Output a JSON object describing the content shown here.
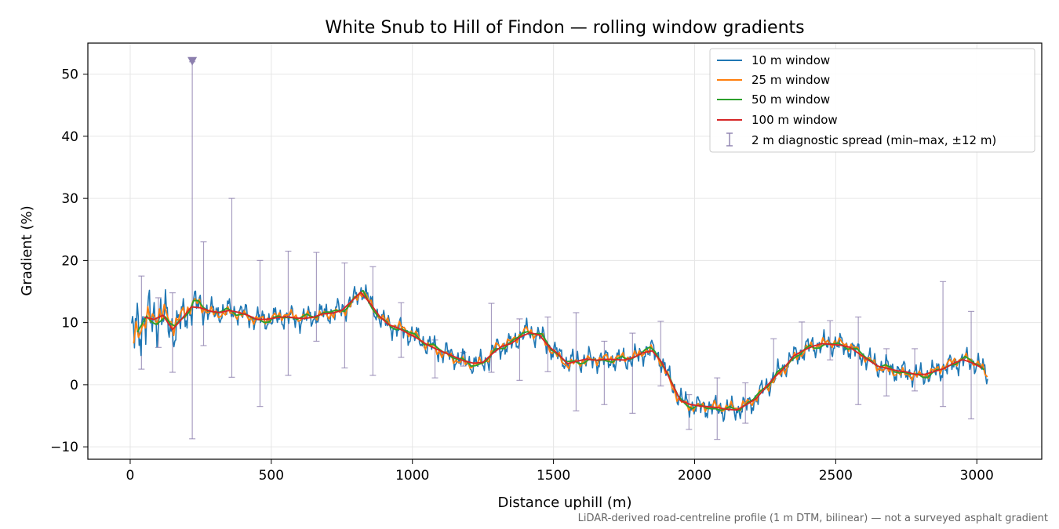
{
  "chart_data": {
    "type": "line",
    "title": "White Snub to Hill of Findon — rolling window gradients",
    "xlabel": "Distance uphill (m)",
    "ylabel": "Gradient (%)",
    "footnote": "LiDAR-derived road-centreline profile (1 m DTM, bilinear) — not a surveyed asphalt gradient",
    "xlim": [
      -150,
      3230
    ],
    "ylim": [
      -12,
      55
    ],
    "xticks": [
      0,
      500,
      1000,
      1500,
      2000,
      2500,
      3000
    ],
    "xtick_labels": [
      "0",
      "500",
      "1000",
      "1500",
      "2000",
      "2500",
      "3000"
    ],
    "yticks": [
      -10,
      0,
      10,
      20,
      30,
      40,
      50
    ],
    "ytick_labels": [
      "−10",
      "0",
      "10",
      "20",
      "30",
      "40",
      "50"
    ],
    "grid": true,
    "legend_position": "top-right",
    "colors": {
      "w10": "#1f77b4",
      "w25": "#ff7f0e",
      "w50": "#2ca02c",
      "w100": "#d62728",
      "spread": "#8c7fae"
    },
    "base_profile": {
      "x": [
        0,
        25,
        50,
        75,
        100,
        125,
        150,
        175,
        200,
        225,
        250,
        275,
        300,
        350,
        400,
        450,
        500,
        550,
        600,
        650,
        700,
        750,
        800,
        825,
        850,
        900,
        950,
        1000,
        1050,
        1100,
        1150,
        1200,
        1250,
        1275,
        1300,
        1350,
        1400,
        1450,
        1500,
        1550,
        1600,
        1650,
        1700,
        1750,
        1800,
        1825,
        1850,
        1875,
        1900,
        1950,
        2000,
        2050,
        2100,
        2150,
        2200,
        2250,
        2300,
        2350,
        2400,
        2450,
        2500,
        2550,
        2600,
        2650,
        2700,
        2750,
        2800,
        2850,
        2900,
        2950,
        3000,
        3040
      ],
      "y": [
        6.5,
        9,
        11,
        10,
        11.5,
        10.5,
        9,
        10,
        11.5,
        13,
        12.5,
        12,
        11.5,
        12,
        11.5,
        10.5,
        10.5,
        11,
        10.5,
        11,
        11.5,
        12,
        14,
        15.5,
        13,
        10,
        9,
        8,
        6.5,
        5.5,
        4.5,
        3.5,
        3.5,
        4.5,
        6,
        6.5,
        8.5,
        8,
        5.5,
        3.5,
        4,
        4,
        4,
        4,
        4.5,
        5.5,
        5.5,
        4.5,
        2,
        -2.5,
        -3.5,
        -3.5,
        -4,
        -4,
        -3,
        -0.5,
        2,
        4.5,
        6,
        6.5,
        6.5,
        6,
        4.5,
        3,
        2.5,
        2,
        1.5,
        2,
        3,
        4,
        3.5,
        1.5
      ]
    },
    "series": [
      {
        "name": "10 m window",
        "window": 10,
        "noise": 1.6
      },
      {
        "name": "25 m window",
        "window": 25,
        "noise": 0.9
      },
      {
        "name": "50 m window",
        "window": 50,
        "noise": 0.45
      },
      {
        "name": "100 m window",
        "window": 100,
        "noise": 0.12
      }
    ],
    "spread": {
      "name": "2 m diagnostic spread (min–max, ±12 m)",
      "x": [
        40,
        100,
        150,
        220,
        260,
        360,
        460,
        560,
        660,
        760,
        860,
        960,
        1080,
        1180,
        1280,
        1380,
        1480,
        1580,
        1680,
        1780,
        1880,
        1980,
        2080,
        2180,
        2280,
        2380,
        2480,
        2580,
        2680,
        2780,
        2880,
        2980
      ],
      "min": [
        2.5,
        6,
        2,
        -8.7,
        6.3,
        1.2,
        -3.5,
        1.5,
        7,
        2.7,
        1.5,
        4.4,
        1.1,
        3,
        2,
        0.7,
        2.1,
        -4.2,
        -3.2,
        -4.6,
        -0.2,
        -7.2,
        -8.8,
        -6.2,
        1,
        5,
        4,
        -3.2,
        -1.8,
        -1,
        -3.5,
        -5.5
      ],
      "max": [
        17.5,
        14,
        14.8,
        52,
        23,
        30,
        20,
        21.5,
        21.3,
        19.6,
        19,
        13.2,
        7.2,
        5.2,
        13.1,
        10.6,
        10.9,
        11.6,
        7,
        8.3,
        10.2,
        -1.6,
        1.1,
        0.3,
        7.4,
        10.1,
        10.3,
        10.9,
        5.8,
        5.8,
        16.6,
        11.8
      ],
      "marker_x": 220,
      "marker_y": 52
    }
  }
}
